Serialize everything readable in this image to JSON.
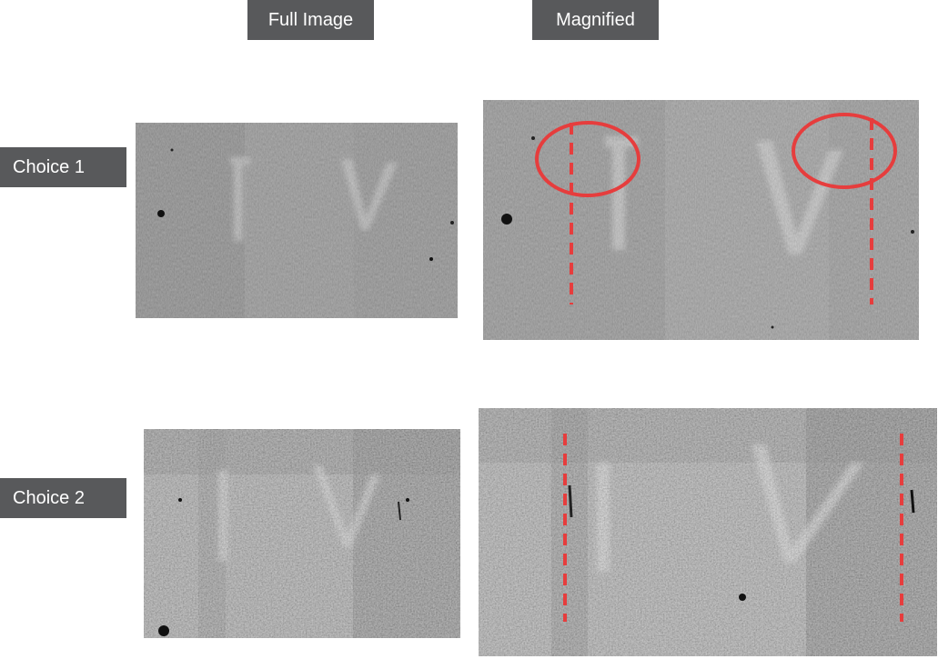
{
  "columns": {
    "full": "Full Image",
    "magnified": "Magnified"
  },
  "rows": [
    {
      "label": "Choice 1"
    },
    {
      "label": "Choice 2"
    }
  ],
  "colors": {
    "label_bg": "#58595b",
    "label_text": "#ffffff",
    "annotation": "#e63d3d"
  }
}
